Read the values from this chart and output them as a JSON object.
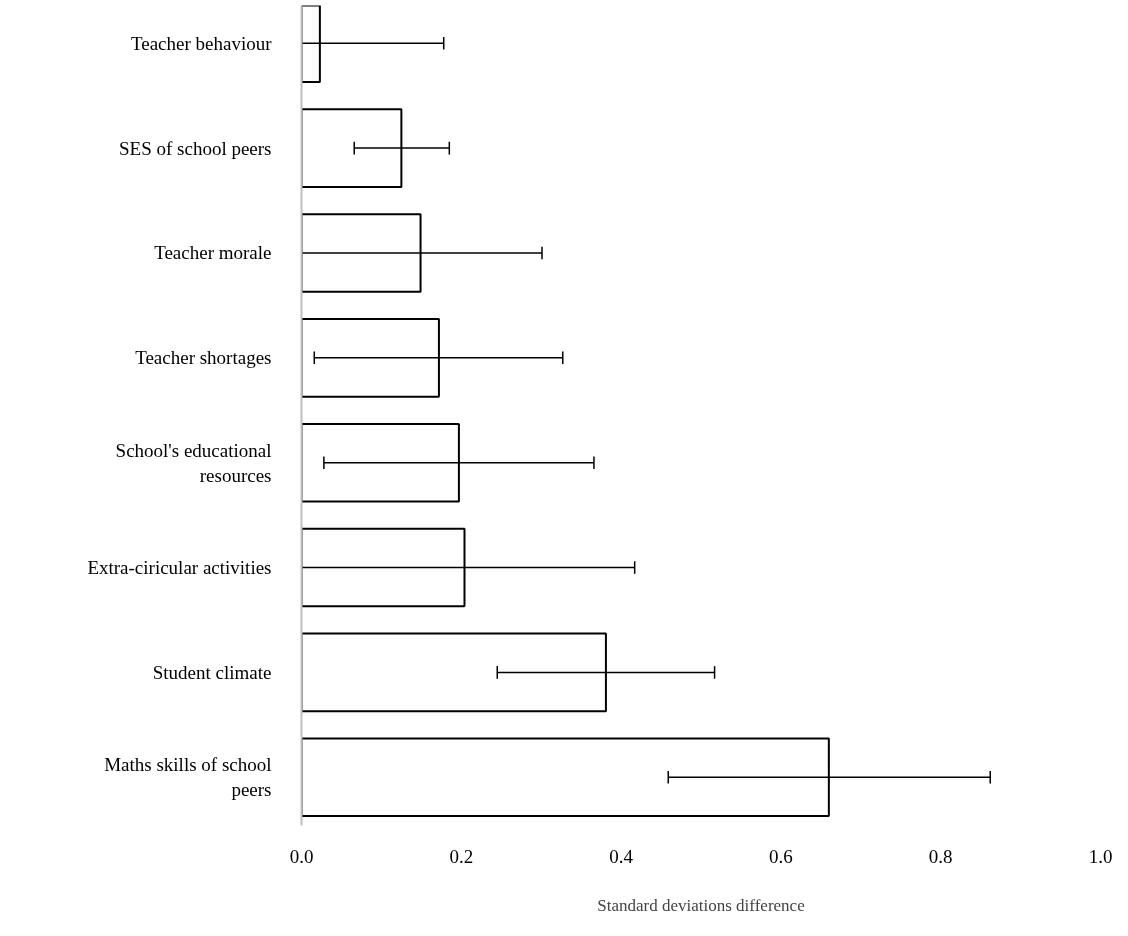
{
  "chart_data": {
    "type": "bar",
    "orientation": "horizontal",
    "xlabel": "Standard deviations difference",
    "categories": [
      "Teacher behaviour",
      "SES of school peers",
      "Teacher morale",
      "Teacher shortages",
      "School's educational resources",
      "Extra-ciricular activities",
      "Student climate",
      "Maths skills of school peers"
    ],
    "values": [
      0.023,
      0.125,
      0.149,
      0.172,
      0.197,
      0.204,
      0.381,
      0.66
    ],
    "errors": [
      [
        0,
        0.178
      ],
      [
        0.066,
        0.185
      ],
      [
        0,
        0.301
      ],
      [
        0.016,
        0.327
      ],
      [
        0.028,
        0.366
      ],
      [
        0,
        0.417
      ],
      [
        0.245,
        0.517
      ],
      [
        0.459,
        0.862
      ]
    ],
    "color": "#ffffff",
    "xlim": [
      0,
      1
    ],
    "xticks": [
      {
        "value": 0,
        "label": "0.0"
      },
      0.2,
      0.4,
      0.6,
      0.8,
      {
        "value": 1,
        "label": "1.0"
      }
    ],
    "grid": false
  }
}
